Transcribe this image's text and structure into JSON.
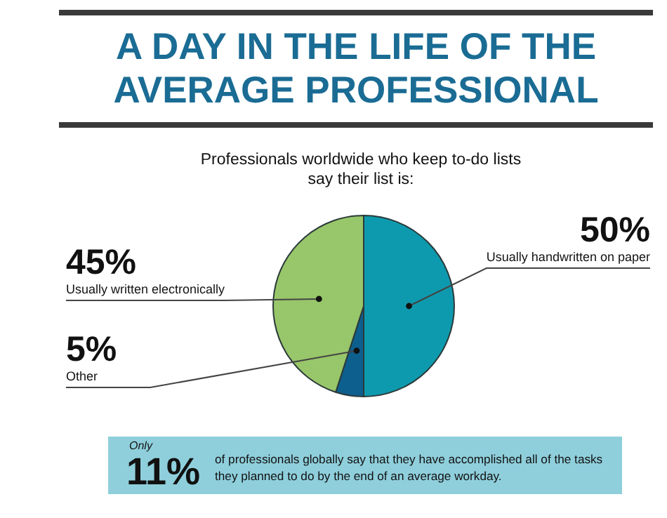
{
  "chart_data": {
    "type": "pie",
    "title": "A DAY IN THE LIFE OF THE AVERAGE PROFESSIONAL",
    "subtitle": "Professionals worldwide who keep to-do lists say their list is:",
    "categories": [
      "Usually handwritten on paper",
      "Other",
      "Usually written electronically"
    ],
    "values": [
      50,
      5,
      45
    ],
    "colors": [
      "#0e9aae",
      "#0d5f8e",
      "#98c66a"
    ],
    "value_labels": [
      "50%",
      "5%",
      "45%"
    ],
    "annotations": [
      "Only",
      "11%",
      "of professionals globally say that they have accomplished all of the tasks they planned to do by the end of an average workday."
    ]
  }
}
